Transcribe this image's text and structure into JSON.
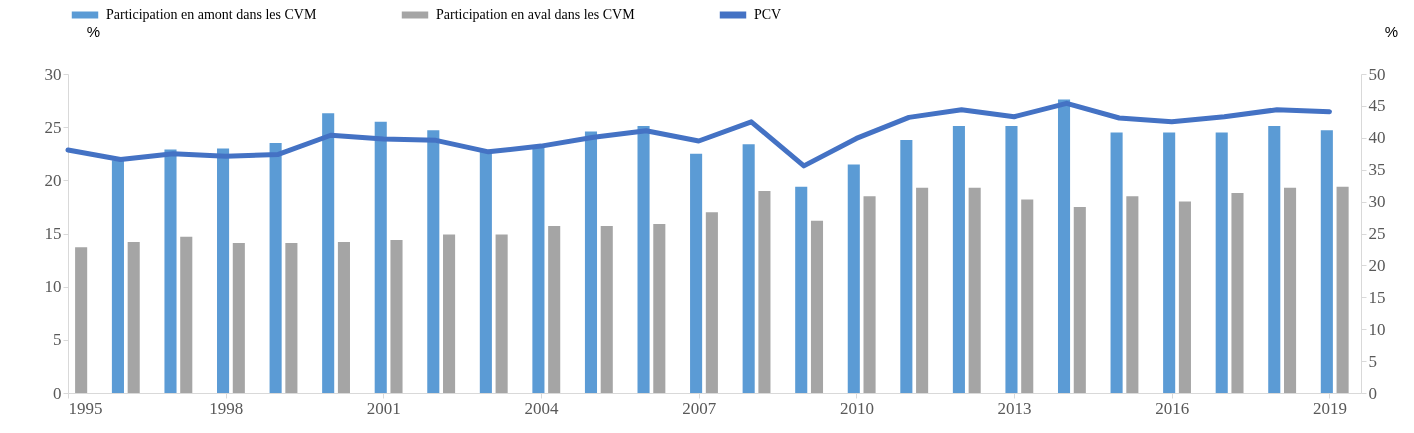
{
  "chart_data": {
    "type": "bar",
    "ylabel": "%",
    "y2label": "%",
    "x": [
      1995,
      1996,
      1997,
      1998,
      1999,
      2000,
      2001,
      2002,
      2003,
      2004,
      2005,
      2006,
      2007,
      2008,
      2009,
      2010,
      2011,
      2012,
      2013,
      2014,
      2015,
      2016,
      2017,
      2018,
      2019
    ],
    "xlim": [
      1995,
      2019.6
    ],
    "xticks": [
      1995,
      1998,
      2001,
      2004,
      2007,
      2010,
      2013,
      2016,
      2019
    ],
    "ylim": [
      0,
      30
    ],
    "yticks": [
      0,
      5,
      10,
      15,
      20,
      25,
      30
    ],
    "y2lim": [
      0,
      50
    ],
    "y2ticks": [
      0,
      5,
      10,
      15,
      20,
      25,
      30,
      35,
      40,
      45,
      50
    ],
    "grid": false,
    "legend": "top",
    "series": [
      {
        "name": "Participation en amont dans les CVM",
        "color": "#5b9bd5",
        "values": [
          null,
          21.9,
          22.9,
          23.0,
          23.5,
          26.3,
          25.5,
          24.7,
          22.7,
          23.3,
          24.6,
          25.1,
          22.5,
          23.4,
          19.4,
          21.5,
          23.8,
          25.1,
          25.1,
          27.6,
          24.5,
          24.5,
          24.5,
          25.1,
          24.7
        ]
      },
      {
        "name": "Participation en aval dans les CVM",
        "color": "#a5a5a5",
        "values": [
          13.7,
          14.2,
          14.7,
          14.1,
          14.1,
          14.2,
          14.4,
          14.9,
          14.9,
          15.7,
          15.7,
          15.9,
          17.0,
          19.0,
          16.2,
          18.5,
          19.3,
          19.3,
          18.2,
          17.5,
          18.5,
          18.0,
          18.8,
          19.3,
          19.4
        ]
      },
      {
        "name": "PCV",
        "type": "line",
        "axis": "y2",
        "color": "#4472c4",
        "values": [
          38.1,
          36.6,
          37.5,
          37.1,
          37.4,
          40.4,
          39.8,
          39.6,
          37.8,
          38.7,
          40.1,
          41.1,
          39.5,
          42.5,
          35.6,
          39.9,
          43.2,
          44.4,
          43.3,
          45.4,
          43.1,
          42.5,
          43.3,
          44.4,
          44.1
        ]
      }
    ]
  }
}
